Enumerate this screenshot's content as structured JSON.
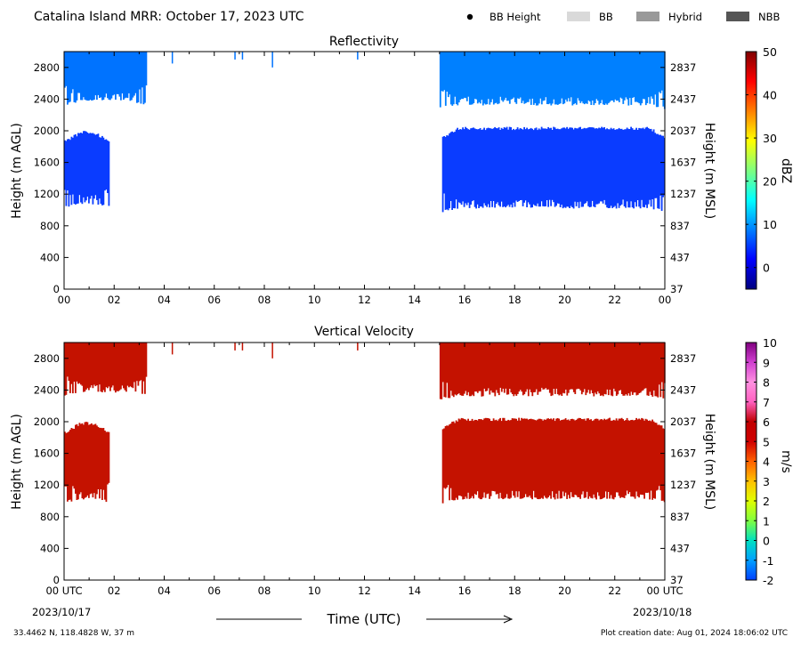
{
  "header": {
    "title": "Catalina Island MRR:  October 17, 2023 UTC",
    "legend": [
      {
        "label": "BB Height",
        "color": "#000000",
        "marker": "dot"
      },
      {
        "label": "BB",
        "color": "#d9d9d9",
        "marker": "box"
      },
      {
        "label": "Hybrid",
        "color": "#999999",
        "marker": "box"
      },
      {
        "label": "NBB",
        "color": "#555555",
        "marker": "box"
      }
    ]
  },
  "footer": {
    "location": "33.4462 N, 118.4828 W, 37 m",
    "creation": "Plot creation date: Aug 01, 2024 18:06:02 UTC",
    "x_label": "Time (UTC)",
    "start_date": "2023/10/17",
    "end_date": "2023/10/18"
  },
  "chart_data": [
    {
      "type": "heatmap",
      "title": "Reflectivity",
      "ylabel": "Height (m AGL)",
      "ylabel_right": "Height (m MSL)",
      "x_ticks": [
        "00",
        "02",
        "04",
        "06",
        "08",
        "10",
        "12",
        "14",
        "16",
        "18",
        "20",
        "22",
        "00"
      ],
      "xlim": [
        0,
        24
      ],
      "y_ticks": [
        0,
        400,
        800,
        1200,
        1600,
        2000,
        2400,
        2800
      ],
      "y_ticks_right": [
        37,
        437,
        837,
        1237,
        1637,
        2037,
        2437,
        2837
      ],
      "ylim": [
        0,
        3000
      ],
      "colorbar": {
        "label": "dBZ",
        "range": [
          -5,
          50
        ],
        "ticks": [
          0,
          10,
          20,
          30,
          40,
          50
        ],
        "colors": [
          "#00007f",
          "#0000ff",
          "#007fff",
          "#00ffff",
          "#7fff7f",
          "#ffff00",
          "#ff7f00",
          "#ff0000",
          "#7f0000"
        ]
      },
      "regions": [
        {
          "x": [
            0.0,
            3.3
          ],
          "y": [
            2400,
            3000
          ],
          "color": "#0073ff",
          "note": "upper layer, fading edge"
        },
        {
          "x": [
            0.0,
            1.8
          ],
          "y": [
            1100,
            2000
          ],
          "color": "#0a3cff"
        },
        {
          "x": [
            15.0,
            24.0
          ],
          "y": [
            2350,
            3000
          ],
          "color": "#0080ff"
        },
        {
          "x": [
            15.1,
            24.0
          ],
          "y": [
            1050,
            2050
          ],
          "color": "#0a3cff"
        }
      ],
      "specks": [
        {
          "x": 4.3,
          "y": [
            2850,
            3000
          ]
        },
        {
          "x": 6.8,
          "y": [
            2900,
            3000
          ]
        },
        {
          "x": 7.1,
          "y": [
            2900,
            3000
          ]
        },
        {
          "x": 8.3,
          "y": [
            2800,
            3000
          ]
        },
        {
          "x": 11.7,
          "y": [
            2900,
            3000
          ]
        }
      ]
    },
    {
      "type": "heatmap",
      "title": "Vertical Velocity",
      "ylabel": "Height (m AGL)",
      "ylabel_right": "Height (m MSL)",
      "x_ticks": [
        "00 UTC",
        "02",
        "04",
        "06",
        "08",
        "10",
        "12",
        "14",
        "16",
        "18",
        "20",
        "22",
        "00 UTC"
      ],
      "xlim": [
        0,
        24
      ],
      "y_ticks": [
        0,
        400,
        800,
        1200,
        1600,
        2000,
        2400,
        2800
      ],
      "y_ticks_right": [
        37,
        437,
        837,
        1237,
        1637,
        2037,
        2437,
        2837
      ],
      "ylim": [
        0,
        3000
      ],
      "colorbar": {
        "label": "m/s",
        "range": [
          -2,
          10
        ],
        "ticks": [
          -2,
          -1,
          0,
          1,
          2,
          3,
          4,
          5,
          6,
          7,
          8,
          9,
          10
        ],
        "colors": [
          "#0040ff",
          "#00a0ff",
          "#00e0c0",
          "#80ff40",
          "#e0ff00",
          "#ffc000",
          "#ff6000",
          "#d00000",
          "#c00000",
          "#ff60c0",
          "#ff90e0",
          "#d040d0",
          "#800080"
        ]
      },
      "regions": [
        {
          "x": [
            0.0,
            3.3
          ],
          "y": [
            2400,
            3000
          ],
          "color": "#c41200"
        },
        {
          "x": [
            0.0,
            1.8
          ],
          "y": [
            1050,
            2000
          ],
          "color": "#c41200"
        },
        {
          "x": [
            15.0,
            24.0
          ],
          "y": [
            2350,
            3000
          ],
          "color": "#c41200"
        },
        {
          "x": [
            15.1,
            24.0
          ],
          "y": [
            1050,
            2050
          ],
          "color": "#c41200"
        }
      ],
      "specks": [
        {
          "x": 4.3,
          "y": [
            2850,
            3000
          ]
        },
        {
          "x": 6.8,
          "y": [
            2900,
            3000
          ]
        },
        {
          "x": 7.1,
          "y": [
            2900,
            3000
          ]
        },
        {
          "x": 8.3,
          "y": [
            2800,
            3000
          ]
        },
        {
          "x": 11.7,
          "y": [
            2900,
            3000
          ]
        }
      ]
    }
  ]
}
